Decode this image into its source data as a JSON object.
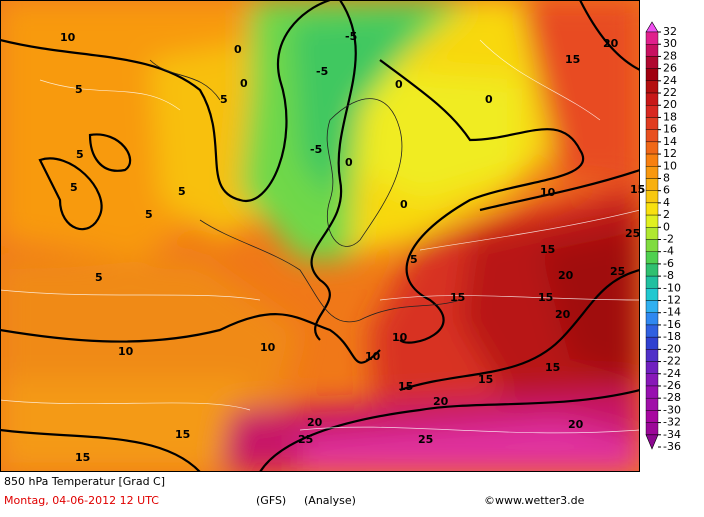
{
  "map": {
    "title": "850 hPa Temperatur [Grad C]",
    "date": "Montag, 04-06-2012  12 UTC",
    "model": "(GFS)",
    "run": "(Analyse)",
    "source": "©www.wetter3.de",
    "contour_labels": [
      "10",
      "5",
      "5",
      "5",
      "5",
      "5",
      "5",
      "5",
      "0",
      "0",
      "-5",
      "-5",
      "-5",
      "0",
      "0",
      "0",
      "0",
      "5",
      "10",
      "15",
      "15",
      "20",
      "25",
      "25",
      "20",
      "20",
      "15",
      "15",
      "15",
      "10",
      "10",
      "10",
      "10",
      "15",
      "20",
      "20",
      "25",
      "15",
      "15",
      "25",
      "20",
      "15",
      "15"
    ],
    "legend": [
      {
        "value": 32,
        "color": "#f050f0"
      },
      {
        "value": 30,
        "color": "#e0208c"
      },
      {
        "value": 28,
        "color": "#c81060"
      },
      {
        "value": 26,
        "color": "#b00830"
      },
      {
        "value": 24,
        "color": "#a00010"
      },
      {
        "value": 22,
        "color": "#b41010"
      },
      {
        "value": 20,
        "color": "#c81818"
      },
      {
        "value": 18,
        "color": "#d82820"
      },
      {
        "value": 16,
        "color": "#e03c20"
      },
      {
        "value": 14,
        "color": "#e85020"
      },
      {
        "value": 12,
        "color": "#f06818"
      },
      {
        "value": 10,
        "color": "#f88010"
      },
      {
        "value": 8,
        "color": "#f89810"
      },
      {
        "value": 6,
        "color": "#f8b010"
      },
      {
        "value": 4,
        "color": "#f8c810"
      },
      {
        "value": 2,
        "color": "#f8e010"
      },
      {
        "value": 0,
        "color": "#e0f020"
      },
      {
        "value": -2,
        "color": "#b0e830"
      },
      {
        "value": -4,
        "color": "#80dc40"
      },
      {
        "value": -6,
        "color": "#50d050"
      },
      {
        "value": -8,
        "color": "#30c070"
      },
      {
        "value": -10,
        "color": "#20c0a0"
      },
      {
        "value": -12,
        "color": "#20c8d0"
      },
      {
        "value": -14,
        "color": "#30b0f0"
      },
      {
        "value": -16,
        "color": "#3088f0"
      },
      {
        "value": -18,
        "color": "#3060e0"
      },
      {
        "value": -20,
        "color": "#3040d0"
      },
      {
        "value": -22,
        "color": "#5030c8"
      },
      {
        "value": -24,
        "color": "#7020c0"
      },
      {
        "value": -26,
        "color": "#8818b8"
      },
      {
        "value": -28,
        "color": "#9810b0"
      },
      {
        "value": -30,
        "color": "#a010a8"
      },
      {
        "value": -32,
        "color": "#a808a0"
      },
      {
        "value": -34,
        "color": "#9c0898"
      },
      {
        "value": -36,
        "color": "#8c0890"
      }
    ]
  }
}
